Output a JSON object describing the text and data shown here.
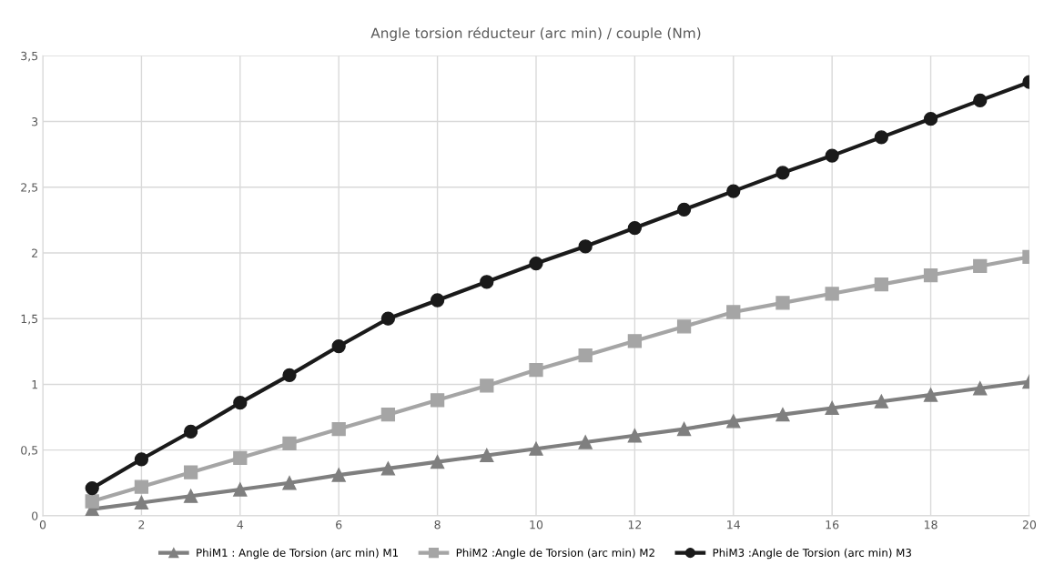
{
  "chart_data": {
    "type": "line",
    "title": "Angle torsion réducteur (arc min) / couple (Nm)",
    "x": [
      1,
      2,
      3,
      4,
      5,
      6,
      7,
      8,
      9,
      10,
      11,
      12,
      13,
      14,
      15,
      16,
      17,
      18,
      19,
      20
    ],
    "series": [
      {
        "name": "PhiM1 : Angle de Torsion (arc min) M1",
        "color": "#7f7f7f",
        "marker": "triangle",
        "values": [
          0.05,
          0.1,
          0.15,
          0.2,
          0.25,
          0.31,
          0.36,
          0.41,
          0.46,
          0.51,
          0.56,
          0.61,
          0.66,
          0.72,
          0.77,
          0.82,
          0.87,
          0.92,
          0.97,
          1.02
        ]
      },
      {
        "name": "PhiM2 :Angle de Torsion (arc min) M2",
        "color": "#a5a5a5",
        "marker": "square",
        "values": [
          0.11,
          0.22,
          0.33,
          0.44,
          0.55,
          0.66,
          0.77,
          0.88,
          0.99,
          1.11,
          1.22,
          1.33,
          1.44,
          1.55,
          1.62,
          1.69,
          1.76,
          1.83,
          1.9,
          1.97
        ]
      },
      {
        "name": "PhiM3 :Angle de Torsion (arc min) M3",
        "color": "#1a1a1a",
        "marker": "circle",
        "values": [
          0.21,
          0.43,
          0.64,
          0.86,
          1.07,
          1.29,
          1.5,
          1.64,
          1.78,
          1.92,
          2.05,
          2.19,
          2.33,
          2.47,
          2.61,
          2.74,
          2.88,
          3.02,
          3.16,
          3.3
        ]
      }
    ],
    "xlim": [
      0,
      20
    ],
    "xticks": [
      0,
      2,
      4,
      6,
      8,
      10,
      12,
      14,
      16,
      18,
      20
    ],
    "ylim": [
      0,
      3.5
    ],
    "yticks": [
      0,
      {
        "value": 0.5,
        "label": "0,5"
      },
      1,
      {
        "value": 1.5,
        "label": "1,5"
      },
      2,
      {
        "value": 2.5,
        "label": "2,5"
      },
      3,
      {
        "value": 3.5,
        "label": "3,5"
      }
    ],
    "grid": true,
    "legend": "bottom",
    "line_style": "solid"
  }
}
